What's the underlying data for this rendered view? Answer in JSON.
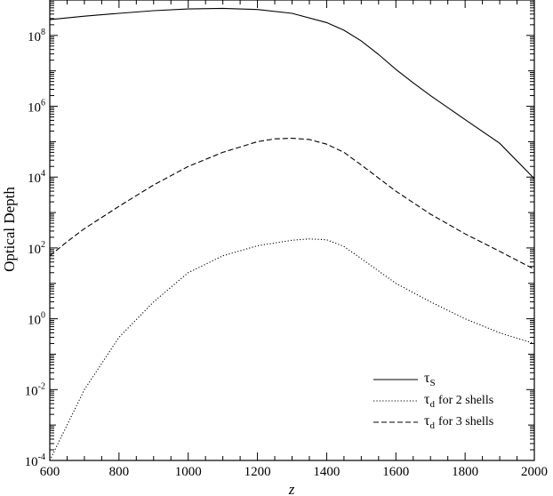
{
  "chart_data": {
    "type": "line",
    "xlabel": "z",
    "ylabel": "Optical Depth",
    "xlim": [
      600,
      2000
    ],
    "ylim": [
      0.0001,
      1000000000
    ],
    "yscale": "log",
    "xticks": [
      600,
      800,
      1000,
      1200,
      1400,
      1600,
      1800,
      2000
    ],
    "yticks": [
      {
        "base": "10",
        "exp": "-4",
        "value": 0.0001
      },
      {
        "base": "10",
        "exp": "-2",
        "value": 0.01
      },
      {
        "base": "10",
        "exp": "0",
        "value": 1
      },
      {
        "base": "10",
        "exp": "2",
        "value": 100
      },
      {
        "base": "10",
        "exp": "4",
        "value": 10000
      },
      {
        "base": "10",
        "exp": "6",
        "value": 1000000
      },
      {
        "base": "10",
        "exp": "8",
        "value": 100000000
      }
    ],
    "grid": false,
    "legend_position": "bottom-right",
    "series": [
      {
        "symbol": "τ",
        "sub": "S",
        "name": "",
        "style": "solid",
        "x": [
          600,
          700,
          800,
          900,
          1000,
          1100,
          1200,
          1300,
          1400,
          1450,
          1500,
          1550,
          1600,
          1650,
          1700,
          1800,
          1900,
          2000
        ],
        "y": [
          280000000,
          350000000,
          420000000,
          500000000,
          560000000,
          580000000,
          540000000,
          420000000,
          230000000,
          140000000,
          70000000,
          29000000,
          11000000,
          4600000,
          2000000,
          420000,
          90000,
          9000
        ]
      },
      {
        "symbol": "τ",
        "sub": "d",
        "name": "for 2 shells",
        "style": "dotted",
        "x": [
          600,
          650,
          700,
          800,
          900,
          1000,
          1100,
          1200,
          1300,
          1350,
          1400,
          1450,
          1500,
          1600,
          1700,
          1800,
          1900,
          2000
        ],
        "y": [
          0.0001,
          0.001,
          0.01,
          0.3,
          3,
          20,
          60,
          115,
          165,
          180,
          170,
          110,
          50,
          10,
          3,
          1,
          0.4,
          0.2
        ]
      },
      {
        "symbol": "τ",
        "sub": "d",
        "name": "for 3 shells",
        "style": "dashed",
        "x": [
          600,
          650,
          700,
          800,
          900,
          1000,
          1100,
          1200,
          1250,
          1300,
          1350,
          1400,
          1450,
          1500,
          1600,
          1700,
          1800,
          1900,
          2000
        ],
        "y": [
          60,
          150,
          350,
          1500,
          6000,
          20000,
          50000,
          100000,
          120000,
          125000,
          115000,
          85000,
          50000,
          22000,
          4000,
          900,
          250,
          80,
          25
        ]
      }
    ]
  }
}
